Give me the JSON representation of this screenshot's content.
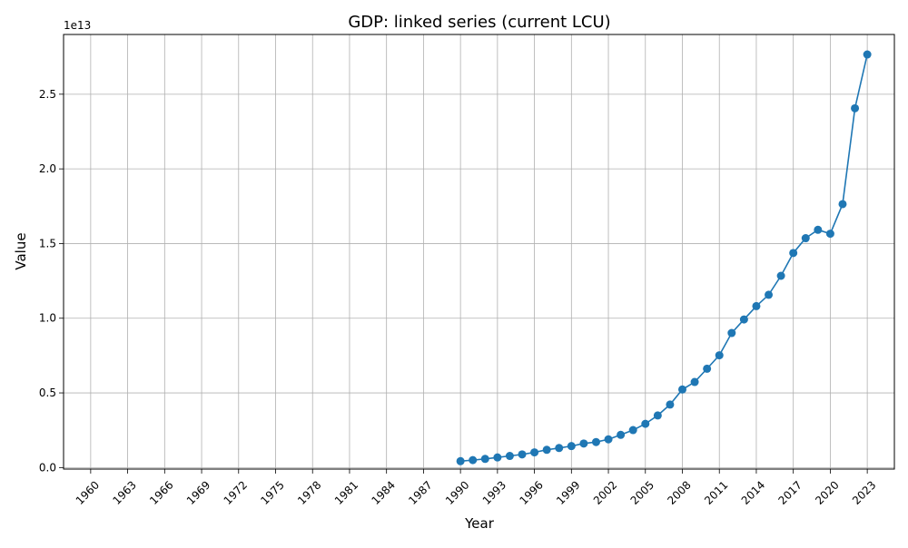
{
  "chart_data": {
    "type": "line",
    "title": "GDP: linked series (current LCU)",
    "xlabel": "Year",
    "ylabel": "Value",
    "y_scale_label": "1e13",
    "x_tick_labels": [
      "1960",
      "1963",
      "1966",
      "1969",
      "1972",
      "1975",
      "1978",
      "1981",
      "1984",
      "1987",
      "1990",
      "1993",
      "1996",
      "1999",
      "2002",
      "2005",
      "2008",
      "2011",
      "2014",
      "2017",
      "2020",
      "2023"
    ],
    "y_tick_labels": [
      "0.0",
      "0.5",
      "1.0",
      "1.5",
      "2.0",
      "2.5"
    ],
    "xlim": [
      1957.8,
      2025.2
    ],
    "ylim": [
      -100000000000.0,
      29000000000000.0
    ],
    "grid": true,
    "legend": "none",
    "series": [
      {
        "color": "#1f77b4",
        "marker": "circle",
        "x": [
          1990,
          1991,
          1992,
          1993,
          1994,
          1995,
          1996,
          1997,
          1998,
          1999,
          2000,
          2001,
          2002,
          2003,
          2004,
          2005,
          2006,
          2007,
          2008,
          2009,
          2010,
          2011,
          2012,
          2013,
          2014,
          2015,
          2016,
          2017,
          2018,
          2019,
          2020,
          2021,
          2022,
          2023
        ],
        "values": [
          430000000000.0,
          500000000000.0,
          580000000000.0,
          680000000000.0,
          780000000000.0,
          880000000000.0,
          1020000000000.0,
          1190000000000.0,
          1310000000000.0,
          1440000000000.0,
          1610000000000.0,
          1710000000000.0,
          1890000000000.0,
          2190000000000.0,
          2510000000000.0,
          2930000000000.0,
          3490000000000.0,
          4220000000000.0,
          5230000000000.0,
          5730000000000.0,
          6620000000000.0,
          7520000000000.0,
          9010000000000.0,
          9920000000000.0,
          10810000000000.0,
          11570000000000.0,
          12840000000000.0,
          14370000000000.0,
          15360000000000.0,
          15920000000000.0,
          15660000000000.0,
          17640000000000.0,
          24060000000000.0,
          27660000000000.0
        ]
      }
    ]
  }
}
